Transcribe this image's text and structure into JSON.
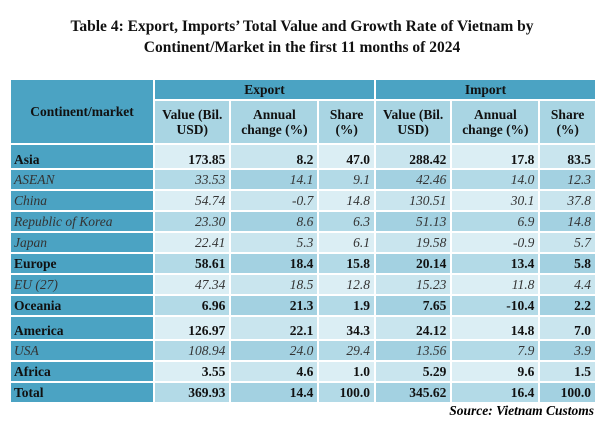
{
  "title_line1": "Table 4: Export, Imports’ Total Value and Growth Rate of Vietnam by",
  "title_line2": "Continent/Market in the first 11 months of 2024",
  "header": {
    "col0": "Continent/market",
    "export": "Export",
    "import": "Import",
    "value": "Value (Bil. USD)",
    "change": "Annual change (%)",
    "share": "Share (%)"
  },
  "rows": [
    {
      "name": "Asia",
      "style": "bold",
      "v": [
        "173.85",
        "8.2",
        "47.0",
        "288.42",
        "17.8",
        "83.5"
      ]
    },
    {
      "name": "ASEAN",
      "style": "italic",
      "v": [
        "33.53",
        "14.1",
        "9.1",
        "42.46",
        "14.0",
        "12.3"
      ]
    },
    {
      "name": "China",
      "style": "italic",
      "v": [
        "54.74",
        "-0.7",
        "14.8",
        "130.51",
        "30.1",
        "37.8"
      ]
    },
    {
      "name": "Republic of Korea",
      "style": "italic",
      "v": [
        "23.30",
        "8.6",
        "6.3",
        "51.13",
        "6.9",
        "14.8"
      ]
    },
    {
      "name": "Japan",
      "style": "italic",
      "v": [
        "22.41",
        "5.3",
        "6.1",
        "19.58",
        "-0.9",
        "5.7"
      ]
    },
    {
      "name": "Europe",
      "style": "bold",
      "v": [
        "58.61",
        "18.4",
        "15.8",
        "20.14",
        "13.4",
        "5.8"
      ]
    },
    {
      "name": "EU (27)",
      "style": "italic",
      "v": [
        "47.34",
        "18.5",
        "12.8",
        "15.23",
        "11.8",
        "4.4"
      ]
    },
    {
      "name": "Oceania",
      "style": "bold",
      "v": [
        "6.96",
        "21.3",
        "1.9",
        "7.65",
        "-10.4",
        "2.2"
      ]
    },
    {
      "name": "America",
      "style": "bold",
      "v": [
        "126.97",
        "22.1",
        "34.3",
        "24.12",
        "14.8",
        "7.0"
      ]
    },
    {
      "name": "USA",
      "style": "italic",
      "v": [
        "108.94",
        "24.0",
        "29.4",
        "13.56",
        "7.9",
        "3.9"
      ]
    },
    {
      "name": "Africa",
      "style": "bold",
      "v": [
        "3.55",
        "4.6",
        "1.0",
        "5.29",
        "9.6",
        "1.5"
      ]
    },
    {
      "name": "Total",
      "style": "bold",
      "v": [
        "369.93",
        "14.4",
        "100.0",
        "345.62",
        "16.4",
        "100.0"
      ]
    }
  ],
  "source": "Source: Vietnam Customs"
}
